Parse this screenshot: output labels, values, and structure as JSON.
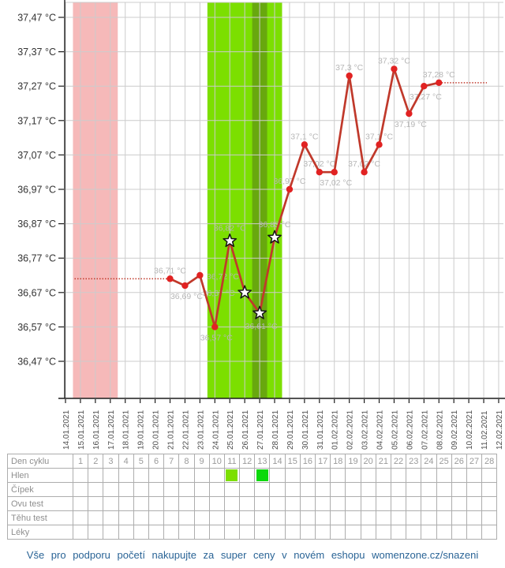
{
  "chart_data": {
    "type": "line",
    "title": "",
    "y_unit": "°C",
    "ylim": [
      36.42,
      37.52
    ],
    "grid": true,
    "x_tick_rotation": "vertical",
    "y_ticks": [
      {
        "value": 37.47,
        "label": "37,47 °C"
      },
      {
        "value": 37.37,
        "label": "37,37 °C"
      },
      {
        "value": 37.27,
        "label": "37,27 °C"
      },
      {
        "value": 37.17,
        "label": "37,17 °C"
      },
      {
        "value": 37.07,
        "label": "37,07 °C"
      },
      {
        "value": 36.97,
        "label": "36,97 °C"
      },
      {
        "value": 36.87,
        "label": "36,87 °C"
      },
      {
        "value": 36.77,
        "label": "36,77 °C"
      },
      {
        "value": 36.67,
        "label": "36,67 °C"
      },
      {
        "value": 36.57,
        "label": "36,57 °C"
      },
      {
        "value": 36.47,
        "label": "36,47 °C"
      }
    ],
    "x_dates": [
      "14.01.2021",
      "15.01.2021",
      "16.01.2021",
      "17.01.2021",
      "18.01.2021",
      "19.01.2021",
      "20.01.2021",
      "21.01.2021",
      "22.01.2021",
      "23.01.2021",
      "24.01.2021",
      "25.01.2021",
      "26.01.2021",
      "27.01.2021",
      "28.01.2021",
      "29.01.2021",
      "30.01.2021",
      "31.01.2021",
      "01.02.2021",
      "02.02.2021",
      "03.02.2021",
      "04.02.2021",
      "05.02.2021",
      "06.02.2021",
      "07.02.2021",
      "08.02.2021",
      "09.02.2021",
      "10.02.2021",
      "11.02.2021",
      "12.02.2021"
    ],
    "points": [
      {
        "date": "21.01.2021",
        "value": 36.71,
        "label": "36,71 °C",
        "star": false,
        "label_pos": "above"
      },
      {
        "date": "22.01.2021",
        "value": 36.69,
        "label": "36,69 °C",
        "star": false,
        "label_pos": "below"
      },
      {
        "date": "23.01.2021",
        "value": 36.72,
        "label": "36,72 °C",
        "star": false,
        "label_pos": "right"
      },
      {
        "date": "24.01.2021",
        "value": 36.57,
        "label": "36,57 °C",
        "star": false,
        "label_pos": "below"
      },
      {
        "date": "25.01.2021",
        "value": 36.82,
        "label": "36,82 °C",
        "star": true,
        "label_pos": "above"
      },
      {
        "date": "26.01.2021",
        "value": 36.67,
        "label": "36,67 °C",
        "star": true,
        "label_pos": "left"
      },
      {
        "date": "27.01.2021",
        "value": 36.61,
        "label": "36,61 °C",
        "star": true,
        "label_pos": "below"
      },
      {
        "date": "28.01.2021",
        "value": 36.83,
        "label": "36,83 °C",
        "star": true,
        "label_pos": "above"
      },
      {
        "date": "29.01.2021",
        "value": 36.97,
        "label": "36,97 °C",
        "star": false,
        "label_pos": "above"
      },
      {
        "date": "30.01.2021",
        "value": 37.1,
        "label": "37,1 °C",
        "star": false,
        "label_pos": "above"
      },
      {
        "date": "31.01.2021",
        "value": 37.02,
        "label": "37,02 °C",
        "star": false,
        "label_pos": "above"
      },
      {
        "date": "01.02.2021",
        "value": 37.02,
        "label": "37,02 °C",
        "star": false,
        "label_pos": "below"
      },
      {
        "date": "02.02.2021",
        "value": 37.3,
        "label": "37,3 °C",
        "star": false,
        "label_pos": "above"
      },
      {
        "date": "03.02.2021",
        "value": 37.02,
        "label": "37,02 °C",
        "star": false,
        "label_pos": "above"
      },
      {
        "date": "04.02.2021",
        "value": 37.1,
        "label": "37,1 °C",
        "star": false,
        "label_pos": "above"
      },
      {
        "date": "05.02.2021",
        "value": 37.32,
        "label": "37,32 °C",
        "star": false,
        "label_pos": "above"
      },
      {
        "date": "06.02.2021",
        "value": 37.19,
        "label": "37,19 °C",
        "star": false,
        "label_pos": "below"
      },
      {
        "date": "07.02.2021",
        "value": 37.27,
        "label": "37,27 °C",
        "star": false,
        "label_pos": "below"
      },
      {
        "date": "08.02.2021",
        "value": 37.28,
        "label": "37,28 °C",
        "star": false,
        "label_pos": "above"
      }
    ],
    "bands": {
      "menstruation": {
        "from": "15.01.2021",
        "to": "17.01.2021",
        "color": "#f6b9b9"
      },
      "fertile": {
        "from": "24.01.2021",
        "to": "28.01.2021",
        "color": "#7cdf00"
      },
      "ovulation": {
        "date": "27.01.2021",
        "color": "#68a80e"
      }
    },
    "dotted_baseline": {
      "left": {
        "value": 36.71,
        "to_date": "21.01.2021"
      },
      "right": {
        "value": 37.28,
        "from_date": "08.02.2021"
      }
    },
    "colors": {
      "line": "#c0392b",
      "marker": "#e12222",
      "star_fill": "#ffffff",
      "star_stroke": "#141414",
      "point_label": "#b6b6b6",
      "grid": "#cccccc",
      "axis": "#1c1c1c",
      "y_tick_label": "#333333",
      "x_tick_label": "#4c4c4c"
    }
  },
  "table": {
    "row_labels": [
      "Den cyklu",
      "Hlen",
      "Čípek",
      "Ovu test",
      "Těhu test",
      "Léky"
    ],
    "cycle_days": [
      1,
      2,
      3,
      4,
      5,
      6,
      7,
      8,
      9,
      10,
      11,
      12,
      13,
      14,
      15,
      16,
      17,
      18,
      19,
      20,
      21,
      22,
      23,
      24,
      25,
      26,
      27,
      28
    ],
    "hlen_entries": [
      {
        "day": 11,
        "color": "#7cdf00"
      },
      {
        "day": 13,
        "color": "#0bd90b"
      }
    ]
  },
  "footer": {
    "text": "Vše pro podporu početí nakupujte za super ceny v novém eshopu womenzone.cz/snazeni"
  }
}
